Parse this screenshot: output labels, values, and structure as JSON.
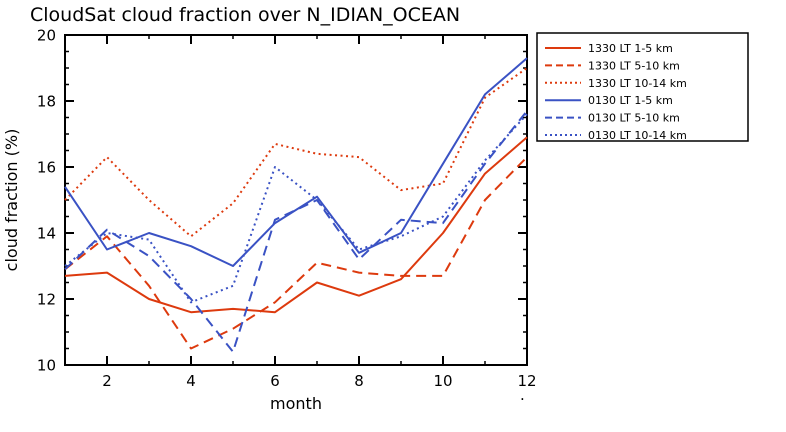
{
  "title": "CloudSat cloud fraction over N_IDIAN_OCEAN",
  "stray_mark": ".",
  "colors": {
    "red": "#dd3a0e",
    "blue": "#3a52c4",
    "axis": "#000000",
    "background": "#ffffff"
  },
  "chart_data": {
    "type": "line",
    "title": "CloudSat cloud fraction over N_IDIAN_OCEAN",
    "xlabel": "month",
    "ylabel": "cloud fraction (%)",
    "xlim": [
      1,
      12
    ],
    "ylim": [
      10,
      20
    ],
    "x_ticks": [
      2,
      4,
      6,
      8,
      10,
      12
    ],
    "y_ticks": [
      10,
      12,
      14,
      16,
      18,
      20
    ],
    "grid": false,
    "legend_position": "outside upper right",
    "x": [
      1,
      2,
      3,
      4,
      5,
      6,
      7,
      8,
      9,
      10,
      11,
      12
    ],
    "series": [
      {
        "name": "1330 LT 1-5 km",
        "color": "#dd3a0e",
        "style": "solid",
        "values": [
          12.7,
          12.8,
          12.0,
          11.6,
          11.7,
          11.6,
          12.5,
          12.1,
          12.6,
          14.0,
          15.8,
          16.9
        ]
      },
      {
        "name": "1330 LT 5-10 km",
        "color": "#dd3a0e",
        "style": "dashed",
        "values": [
          12.9,
          13.9,
          12.4,
          10.5,
          11.1,
          11.9,
          13.1,
          12.8,
          12.7,
          12.7,
          15.0,
          16.3
        ]
      },
      {
        "name": "1330 LT 10-14 km",
        "color": "#dd3a0e",
        "style": "dotted",
        "values": [
          15.0,
          16.3,
          15.0,
          13.9,
          14.9,
          16.7,
          16.4,
          16.3,
          15.3,
          15.5,
          18.1,
          19.0
        ]
      },
      {
        "name": "0130 LT 1-5 km",
        "color": "#3a52c4",
        "style": "solid",
        "values": [
          15.4,
          13.5,
          14.0,
          13.6,
          13.0,
          14.3,
          15.1,
          13.4,
          14.0,
          16.1,
          18.2,
          19.3
        ]
      },
      {
        "name": "0130 LT 5-10 km",
        "color": "#3a52c4",
        "style": "dashed",
        "values": [
          12.9,
          14.1,
          13.3,
          12.0,
          10.4,
          14.4,
          15.0,
          13.2,
          14.4,
          14.3,
          16.1,
          17.7
        ]
      },
      {
        "name": "0130 LT 10-14 km",
        "color": "#3a52c4",
        "style": "dotted",
        "values": [
          13.0,
          14.0,
          13.8,
          11.9,
          12.4,
          16.0,
          15.0,
          13.5,
          13.9,
          14.5,
          16.2,
          17.6
        ]
      }
    ]
  }
}
